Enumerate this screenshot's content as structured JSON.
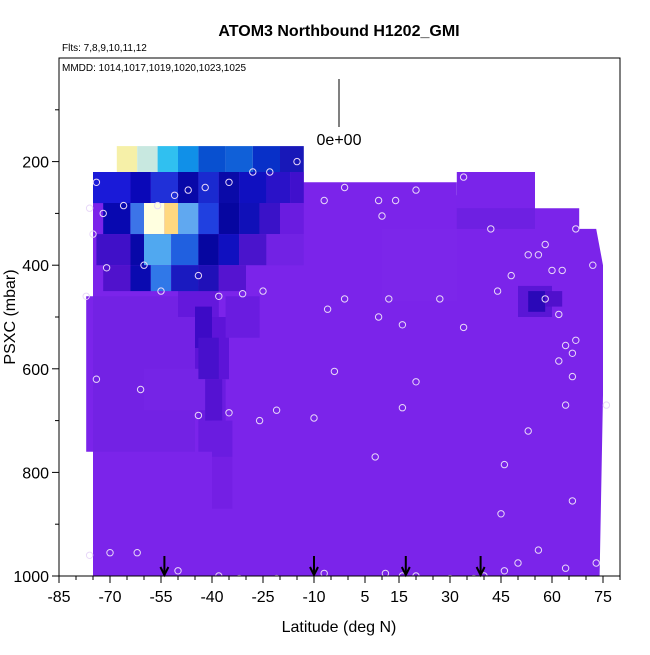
{
  "chart_data": {
    "type": "heatmap",
    "title": "ATOM3 Northbound H1202_GMI",
    "subtitle_flights": "Flts: 7,8,9,10,11,12",
    "subtitle_dates": "MMDD: 1014,1017,1019,1020,1023,1025",
    "xlabel": "Latitude (deg N)",
    "ylabel": "PSXC (mbar)",
    "xlim": [
      -85,
      80
    ],
    "ylim": [
      1000,
      0
    ],
    "x_ticks": [
      -85,
      -70,
      -55,
      -40,
      -25,
      -10,
      5,
      15,
      30,
      45,
      60,
      75
    ],
    "y_ticks": [
      200,
      400,
      600,
      800,
      1000
    ],
    "colorbar_label": "0e+00",
    "background_color": "#7b24ea",
    "arrow_latitudes": [
      -54,
      -10,
      17,
      39
    ],
    "grid": false,
    "cells": [
      {
        "lat": [
          -75,
          -45
        ],
        "p": [
          460,
          760
        ],
        "c": "#7322e4"
      },
      {
        "lat": [
          -45,
          -35
        ],
        "p": [
          500,
          620
        ],
        "c": "#5d14d8"
      },
      {
        "lat": [
          -44,
          -36
        ],
        "p": [
          620,
          760
        ],
        "c": "#6a1ce0"
      },
      {
        "lat": [
          -36,
          -26
        ],
        "p": [
          460,
          540
        ],
        "c": "#6a1ce0"
      },
      {
        "lat": [
          -60,
          -42
        ],
        "p": [
          600,
          680
        ],
        "c": "#7524e6"
      },
      {
        "lat": [
          -50,
          -38
        ],
        "p": [
          440,
          500
        ],
        "c": "#6418dc"
      },
      {
        "lat": [
          -45,
          -40
        ],
        "p": [
          480,
          560
        ],
        "c": "#3d0ac6"
      },
      {
        "lat": [
          -44,
          -38
        ],
        "p": [
          540,
          620
        ],
        "c": "#4810cc"
      },
      {
        "lat": [
          -42,
          -37
        ],
        "p": [
          620,
          700
        ],
        "c": "#5512d2"
      },
      {
        "lat": [
          -40,
          -34
        ],
        "p": [
          700,
          770
        ],
        "c": "#6a1ce0"
      },
      {
        "lat": [
          -40,
          -34
        ],
        "p": [
          770,
          870
        ],
        "c": "#741fe4"
      },
      {
        "lat": [
          -75,
          -64
        ],
        "p": [
          220,
          280
        ],
        "c": "#1a1ad8"
      },
      {
        "lat": [
          -64,
          -58
        ],
        "p": [
          220,
          280
        ],
        "c": "#0a08b8"
      },
      {
        "lat": [
          -58,
          -50
        ],
        "p": [
          220,
          280
        ],
        "c": "#2030d8"
      },
      {
        "lat": [
          -50,
          -44
        ],
        "p": [
          220,
          280
        ],
        "c": "#0808a8"
      },
      {
        "lat": [
          -44,
          -38
        ],
        "p": [
          220,
          280
        ],
        "c": "#1a2ad0"
      },
      {
        "lat": [
          -38,
          -32
        ],
        "p": [
          220,
          280
        ],
        "c": "#0a0aa8"
      },
      {
        "lat": [
          -32,
          -24
        ],
        "p": [
          220,
          280
        ],
        "c": "#1010c0"
      },
      {
        "lat": [
          -24,
          -17
        ],
        "p": [
          220,
          280
        ],
        "c": "#2a12c8"
      },
      {
        "lat": [
          -17,
          -13
        ],
        "p": [
          220,
          280
        ],
        "c": "#4010cc"
      },
      {
        "lat": [
          -68,
          -62
        ],
        "p": [
          170,
          220
        ],
        "c": "#f6f0a8"
      },
      {
        "lat": [
          -62,
          -56
        ],
        "p": [
          170,
          220
        ],
        "c": "#c8e8e0"
      },
      {
        "lat": [
          -56,
          -50
        ],
        "p": [
          170,
          220
        ],
        "c": "#30c0f0"
      },
      {
        "lat": [
          -50,
          -44
        ],
        "p": [
          170,
          220
        ],
        "c": "#1090e8"
      },
      {
        "lat": [
          -44,
          -36
        ],
        "p": [
          170,
          220
        ],
        "c": "#0850d0"
      },
      {
        "lat": [
          -36,
          -28
        ],
        "p": [
          170,
          220
        ],
        "c": "#1060d8"
      },
      {
        "lat": [
          -28,
          -20
        ],
        "p": [
          170,
          220
        ],
        "c": "#0830c8"
      },
      {
        "lat": [
          -20,
          -13
        ],
        "p": [
          170,
          220
        ],
        "c": "#1818b8"
      },
      {
        "lat": [
          -72,
          -64
        ],
        "p": [
          280,
          340
        ],
        "c": "#0808b0"
      },
      {
        "lat": [
          -64,
          -60
        ],
        "p": [
          280,
          340
        ],
        "c": "#3c74e8"
      },
      {
        "lat": [
          -60,
          -54
        ],
        "p": [
          280,
          340
        ],
        "c": "#ffffe0"
      },
      {
        "lat": [
          -54,
          -50
        ],
        "p": [
          280,
          340
        ],
        "c": "#ffd880"
      },
      {
        "lat": [
          -50,
          -44
        ],
        "p": [
          280,
          340
        ],
        "c": "#60a8f0"
      },
      {
        "lat": [
          -44,
          -38
        ],
        "p": [
          280,
          340
        ],
        "c": "#2040e0"
      },
      {
        "lat": [
          -38,
          -32
        ],
        "p": [
          280,
          340
        ],
        "c": "#0606a0"
      },
      {
        "lat": [
          -32,
          -26
        ],
        "p": [
          280,
          340
        ],
        "c": "#1010b8"
      },
      {
        "lat": [
          -26,
          -20
        ],
        "p": [
          280,
          340
        ],
        "c": "#3a12c8"
      },
      {
        "lat": [
          -20,
          -13
        ],
        "p": [
          280,
          340
        ],
        "c": "#6a1ce0"
      },
      {
        "lat": [
          -74,
          -64
        ],
        "p": [
          340,
          400
        ],
        "c": "#4010c8"
      },
      {
        "lat": [
          -64,
          -60
        ],
        "p": [
          340,
          400
        ],
        "c": "#0808a8"
      },
      {
        "lat": [
          -60,
          -52
        ],
        "p": [
          340,
          400
        ],
        "c": "#50a8f0"
      },
      {
        "lat": [
          -52,
          -44
        ],
        "p": [
          340,
          400
        ],
        "c": "#2060e0"
      },
      {
        "lat": [
          -44,
          -38
        ],
        "p": [
          340,
          400
        ],
        "c": "#0606a0"
      },
      {
        "lat": [
          -38,
          -32
        ],
        "p": [
          340,
          400
        ],
        "c": "#1010c0"
      },
      {
        "lat": [
          -32,
          -24
        ],
        "p": [
          340,
          400
        ],
        "c": "#4a14cc"
      },
      {
        "lat": [
          -24,
          -13
        ],
        "p": [
          340,
          400
        ],
        "c": "#7222e4"
      },
      {
        "lat": [
          -72,
          -64
        ],
        "p": [
          400,
          450
        ],
        "c": "#5012cc"
      },
      {
        "lat": [
          -64,
          -58
        ],
        "p": [
          400,
          450
        ],
        "c": "#0a0ab0"
      },
      {
        "lat": [
          -58,
          -52
        ],
        "p": [
          400,
          450
        ],
        "c": "#3078e8"
      },
      {
        "lat": [
          -52,
          -44
        ],
        "p": [
          400,
          450
        ],
        "c": "#1a1ac0"
      },
      {
        "lat": [
          -44,
          -38
        ],
        "p": [
          400,
          450
        ],
        "c": "#2010b8"
      },
      {
        "lat": [
          -38,
          -30
        ],
        "p": [
          400,
          450
        ],
        "c": "#5514d0"
      },
      {
        "lat": [
          32,
          55
        ],
        "p": [
          220,
          290
        ],
        "c": "#7a24ea"
      },
      {
        "lat": [
          32,
          55
        ],
        "p": [
          290,
          330
        ],
        "c": "#6e20e2"
      },
      {
        "lat": [
          50,
          60
        ],
        "p": [
          440,
          500
        ],
        "c": "#5a16d6"
      },
      {
        "lat": [
          53,
          58
        ],
        "p": [
          450,
          490
        ],
        "c": "#2a08b8"
      },
      {
        "lat": [
          58,
          63
        ],
        "p": [
          450,
          480
        ],
        "c": "#5010cc"
      },
      {
        "lat": [
          10,
          32
        ],
        "p": [
          330,
          470
        ],
        "c": "#7c26ea"
      }
    ],
    "domain_outline": [
      [
        -75,
        220
      ],
      [
        -13,
        220
      ],
      [
        -13,
        240
      ],
      [
        32,
        240
      ],
      [
        32,
        265
      ],
      [
        55,
        265
      ],
      [
        55,
        290
      ],
      [
        68,
        290
      ],
      [
        68,
        330
      ],
      [
        73,
        330
      ],
      [
        75,
        400
      ],
      [
        75,
        650
      ],
      [
        74,
        1000
      ],
      [
        -75,
        1000
      ],
      [
        -75,
        760
      ],
      [
        -77,
        760
      ],
      [
        -77,
        460
      ],
      [
        -75,
        460
      ]
    ],
    "sample_points": [
      [
        -74,
        240
      ],
      [
        -76,
        290
      ],
      [
        -72,
        300
      ],
      [
        -66,
        285
      ],
      [
        -56,
        285
      ],
      [
        -51,
        265
      ],
      [
        -47,
        255
      ],
      [
        -42,
        250
      ],
      [
        -35,
        240
      ],
      [
        -28,
        220
      ],
      [
        -23,
        220
      ],
      [
        -15,
        200
      ],
      [
        -7,
        275
      ],
      [
        -1,
        250
      ],
      [
        9,
        275
      ],
      [
        10,
        305
      ],
      [
        14,
        275
      ],
      [
        20,
        255
      ],
      [
        34,
        230
      ],
      [
        42,
        330
      ],
      [
        48,
        420
      ],
      [
        53,
        380
      ],
      [
        56,
        380
      ],
      [
        58,
        360
      ],
      [
        60,
        410
      ],
      [
        63,
        410
      ],
      [
        67,
        330
      ],
      [
        72,
        400
      ],
      [
        -75,
        340
      ],
      [
        -71,
        405
      ],
      [
        -60,
        400
      ],
      [
        -44,
        420
      ],
      [
        -55,
        450
      ],
      [
        -38,
        460
      ],
      [
        -31,
        455
      ],
      [
        -25,
        450
      ],
      [
        -6,
        485
      ],
      [
        -1,
        465
      ],
      [
        9,
        500
      ],
      [
        12,
        465
      ],
      [
        16,
        515
      ],
      [
        27,
        465
      ],
      [
        34,
        520
      ],
      [
        44,
        450
      ],
      [
        58,
        465
      ],
      [
        62,
        495
      ],
      [
        64,
        555
      ],
      [
        66,
        570
      ],
      [
        67,
        545
      ],
      [
        -77,
        460
      ],
      [
        -74,
        620
      ],
      [
        -61,
        640
      ],
      [
        -4,
        605
      ],
      [
        20,
        625
      ],
      [
        62,
        585
      ],
      [
        66,
        615
      ],
      [
        64,
        670
      ],
      [
        76,
        670
      ],
      [
        -44,
        690
      ],
      [
        -35,
        685
      ],
      [
        -26,
        700
      ],
      [
        -21,
        680
      ],
      [
        -10,
        695
      ],
      [
        16,
        675
      ],
      [
        53,
        720
      ],
      [
        46,
        785
      ],
      [
        8,
        770
      ],
      [
        45,
        880
      ],
      [
        66,
        855
      ],
      [
        -76,
        960
      ],
      [
        -70,
        955
      ],
      [
        -62,
        955
      ],
      [
        -50,
        990
      ],
      [
        -38,
        1000
      ],
      [
        -32,
        1005
      ],
      [
        -21,
        1005
      ],
      [
        -7,
        995
      ],
      [
        11,
        995
      ],
      [
        16,
        1000
      ],
      [
        20,
        1000
      ],
      [
        30,
        1005
      ],
      [
        37,
        1005
      ],
      [
        40,
        1000
      ],
      [
        46,
        990
      ],
      [
        50,
        975
      ],
      [
        56,
        950
      ],
      [
        64,
        985
      ],
      [
        73,
        975
      ]
    ]
  }
}
